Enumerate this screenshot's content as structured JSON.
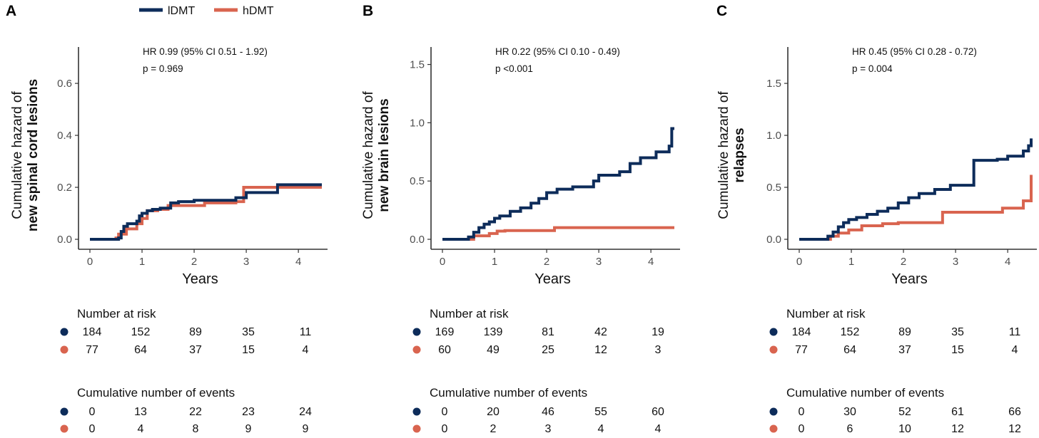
{
  "legend": {
    "items": [
      {
        "label": "lDMT",
        "color": "#0d2c5a"
      },
      {
        "label": "hDMT",
        "color": "#d9644f"
      }
    ]
  },
  "chart_data": [
    {
      "type": "line",
      "step": true,
      "panel_letter": "A",
      "ylabel_line1": "Cumulative hazard of",
      "ylabel_line2": "new spinal cord lesions",
      "xlabel": "Years",
      "xlim": [
        0,
        4.45
      ],
      "ylim": [
        0,
        0.74
      ],
      "xticks": [
        "0",
        "1",
        "2",
        "3",
        "4"
      ],
      "yticks": [
        "0.0",
        "0.2",
        "0.4",
        "0.6"
      ],
      "annotation_hr": "HR 0.99 (95% CI 0.51 - 1.92)",
      "annotation_p": "p = 0.969",
      "series": [
        {
          "name": "lDMT",
          "color": "#0d2c5a",
          "x": [
            0,
            0.55,
            0.6,
            0.65,
            0.72,
            0.9,
            0.95,
            1.0,
            1.1,
            1.2,
            1.35,
            1.55,
            1.7,
            2.0,
            2.8,
            3.0,
            3.6,
            4.45
          ],
          "y": [
            0,
            0.005,
            0.03,
            0.05,
            0.06,
            0.07,
            0.09,
            0.1,
            0.11,
            0.115,
            0.12,
            0.14,
            0.145,
            0.15,
            0.16,
            0.18,
            0.21,
            0.21
          ]
        },
        {
          "name": "hDMT",
          "color": "#d9644f",
          "x": [
            0,
            0.5,
            0.55,
            0.7,
            0.9,
            1.0,
            1.1,
            1.3,
            1.5,
            2.2,
            2.8,
            2.95,
            4.45
          ],
          "y": [
            0,
            0.005,
            0.02,
            0.04,
            0.06,
            0.08,
            0.11,
            0.115,
            0.13,
            0.14,
            0.145,
            0.2,
            0.2
          ]
        }
      ],
      "number_at_risk_title": "Number at risk",
      "number_at_risk": [
        [
          "184",
          "152",
          "89",
          "35",
          "11"
        ],
        [
          "77",
          "64",
          "37",
          "15",
          "4"
        ]
      ],
      "events_title": "Cumulative number of events",
      "events": [
        [
          "0",
          "13",
          "22",
          "23",
          "24"
        ],
        [
          "0",
          "4",
          "8",
          "9",
          "9"
        ]
      ]
    },
    {
      "type": "line",
      "step": true,
      "panel_letter": "B",
      "ylabel_line1": "Cumulative hazard of",
      "ylabel_line2": "new brain lesions",
      "xlabel": "Years",
      "xlim": [
        0,
        4.45
      ],
      "ylim": [
        0,
        1.65
      ],
      "xticks": [
        "0",
        "1",
        "2",
        "3",
        "4"
      ],
      "yticks": [
        "0.0",
        "0.5",
        "1.0",
        "1.5"
      ],
      "annotation_hr": "HR 0.22 (95% CI 0.10 - 0.49)",
      "annotation_p": "p <0.001",
      "series": [
        {
          "name": "lDMT",
          "color": "#0d2c5a",
          "x": [
            0,
            0.5,
            0.6,
            0.7,
            0.8,
            0.9,
            1.0,
            1.1,
            1.3,
            1.5,
            1.7,
            1.85,
            2.0,
            2.2,
            2.5,
            2.9,
            3.0,
            3.4,
            3.6,
            3.8,
            4.1,
            4.35,
            4.4,
            4.45
          ],
          "y": [
            0,
            0.02,
            0.06,
            0.1,
            0.13,
            0.15,
            0.18,
            0.2,
            0.24,
            0.27,
            0.31,
            0.35,
            0.4,
            0.43,
            0.45,
            0.5,
            0.55,
            0.58,
            0.65,
            0.7,
            0.75,
            0.8,
            0.95,
            0.95
          ]
        },
        {
          "name": "hDMT",
          "color": "#d9644f",
          "x": [
            0,
            0.6,
            0.9,
            1.05,
            1.2,
            2.15,
            4.45
          ],
          "y": [
            0,
            0.03,
            0.05,
            0.07,
            0.075,
            0.1,
            0.1
          ]
        }
      ],
      "number_at_risk_title": "Number at risk",
      "number_at_risk": [
        [
          "169",
          "139",
          "81",
          "42",
          "19"
        ],
        [
          "60",
          "49",
          "25",
          "12",
          "3"
        ]
      ],
      "events_title": "Cumulative number of events",
      "events": [
        [
          "0",
          "20",
          "46",
          "55",
          "60"
        ],
        [
          "0",
          "2",
          "3",
          "4",
          "4"
        ]
      ]
    },
    {
      "type": "line",
      "step": true,
      "panel_letter": "C",
      "ylabel_line1": "Cumulative hazard of",
      "ylabel_line2": "relapses",
      "xlabel": "Years",
      "xlim": [
        0,
        4.45
      ],
      "ylim": [
        0,
        1.85
      ],
      "xticks": [
        "0",
        "1",
        "2",
        "3",
        "4"
      ],
      "yticks": [
        "0.0",
        "0.5",
        "1.0",
        "1.5"
      ],
      "annotation_hr": "HR 0.45 (95% CI 0.28 - 0.72)",
      "annotation_p": "p = 0.004",
      "series": [
        {
          "name": "lDMT",
          "color": "#0d2c5a",
          "x": [
            0,
            0.55,
            0.65,
            0.75,
            0.85,
            0.95,
            1.1,
            1.3,
            1.5,
            1.7,
            1.9,
            2.1,
            2.3,
            2.6,
            2.9,
            3.35,
            3.8,
            4.0,
            4.3,
            4.4,
            4.45
          ],
          "y": [
            0,
            0.03,
            0.07,
            0.12,
            0.16,
            0.19,
            0.21,
            0.24,
            0.27,
            0.3,
            0.35,
            0.4,
            0.44,
            0.48,
            0.52,
            0.76,
            0.77,
            0.8,
            0.85,
            0.9,
            0.97
          ]
        },
        {
          "name": "hDMT",
          "color": "#d9644f",
          "x": [
            0,
            0.6,
            0.75,
            0.95,
            1.2,
            1.6,
            1.9,
            2.75,
            3.9,
            4.3,
            4.45
          ],
          "y": [
            0,
            0.03,
            0.06,
            0.09,
            0.13,
            0.15,
            0.16,
            0.26,
            0.3,
            0.37,
            0.62
          ]
        }
      ],
      "number_at_risk_title": "Number at risk",
      "number_at_risk": [
        [
          "184",
          "152",
          "89",
          "35",
          "11"
        ],
        [
          "77",
          "64",
          "37",
          "15",
          "4"
        ]
      ],
      "events_title": "Cumulative number of events",
      "events": [
        [
          "0",
          "30",
          "52",
          "61",
          "66"
        ],
        [
          "0",
          "6",
          "10",
          "12",
          "12"
        ]
      ]
    }
  ]
}
